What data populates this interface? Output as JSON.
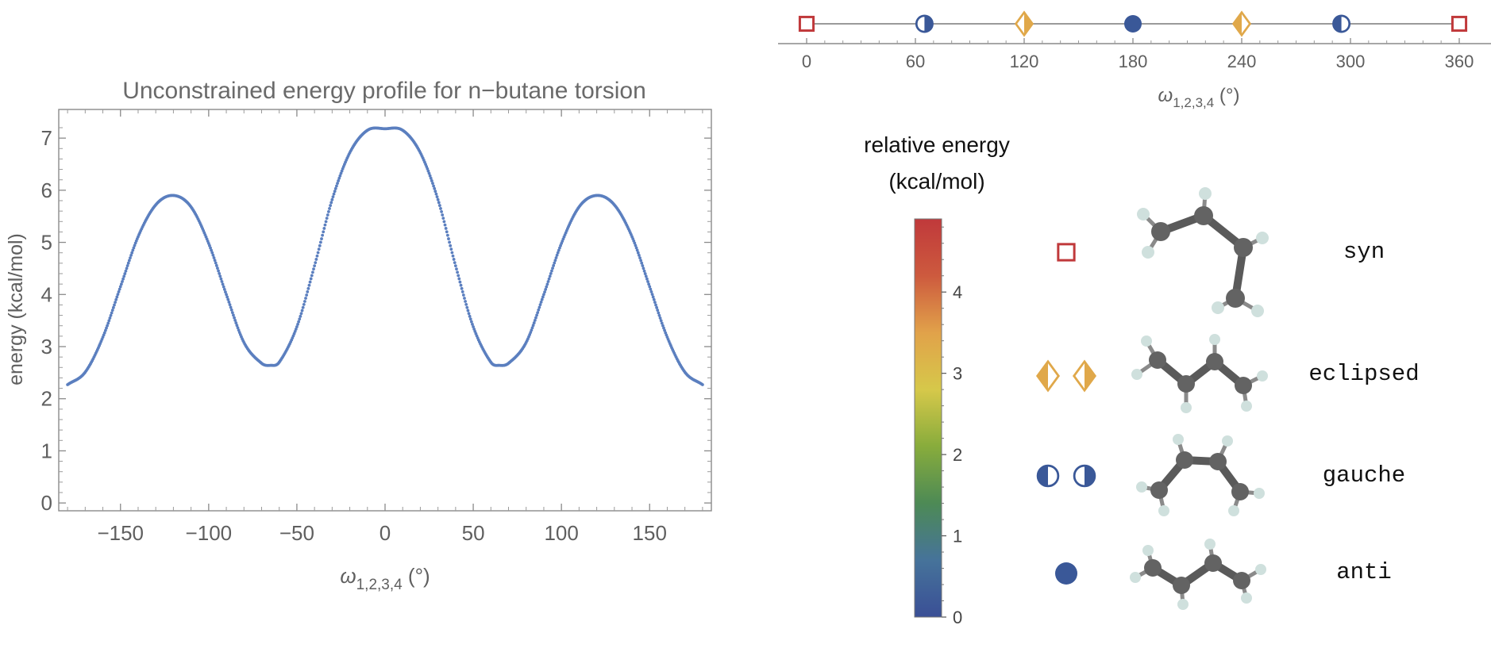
{
  "chart_data": [
    {
      "type": "scatter",
      "title": "Unconstrained energy profile for n−butane torsion",
      "xlabel": "ω",
      "xlabel_sub": "1,2,3,4",
      "xlabel_unit": " (°)",
      "ylabel": "energy (kcal/mol)",
      "xlim": [
        -185,
        185
      ],
      "ylim": [
        -0.15,
        7.55
      ],
      "xticks": [
        -150,
        -100,
        -50,
        0,
        50,
        100,
        150
      ],
      "xtick_labels": [
        "−150",
        "−100",
        "−50",
        "0",
        "50",
        "100",
        "150"
      ],
      "yticks": [
        0,
        1,
        2,
        3,
        4,
        5,
        6,
        7
      ],
      "ytick_labels": [
        "0",
        "1",
        "2",
        "3",
        "4",
        "5",
        "6",
        "7"
      ],
      "series": [
        {
          "name": "energy",
          "color": "#5b7fbf",
          "x": [
            -180,
            -170,
            -160,
            -150,
            -140,
            -130,
            -120,
            -110,
            -100,
            -90,
            -80,
            -70,
            -65,
            -60,
            -50,
            -40,
            -30,
            -20,
            -10,
            0,
            10,
            20,
            30,
            40,
            50,
            60,
            65,
            70,
            80,
            90,
            100,
            110,
            120,
            130,
            140,
            150,
            160,
            170,
            180
          ],
          "y": [
            2.27,
            2.51,
            3.18,
            4.15,
            5.11,
            5.72,
            5.9,
            5.68,
            4.98,
            4.0,
            3.08,
            2.68,
            2.64,
            2.7,
            3.38,
            4.55,
            5.82,
            6.72,
            7.15,
            7.18,
            7.15,
            6.72,
            5.82,
            4.55,
            3.38,
            2.7,
            2.64,
            2.68,
            3.08,
            4.0,
            4.98,
            5.68,
            5.9,
            5.72,
            5.11,
            4.15,
            3.18,
            2.51,
            2.27
          ]
        }
      ]
    },
    {
      "type": "scatter",
      "title": "",
      "xlabel": "ω",
      "xlabel_sub": "1,2,3,4",
      "xlabel_unit": " (°)",
      "ylabel": "",
      "xlim": [
        -15,
        375
      ],
      "xticks": [
        0,
        60,
        120,
        180,
        240,
        300,
        360
      ],
      "xtick_labels": [
        "0",
        "60",
        "120",
        "180",
        "240",
        "300",
        "360"
      ],
      "markers": [
        {
          "x": 0,
          "conformer": "syn",
          "shape": "square",
          "color": "#c0393b"
        },
        {
          "x": 65,
          "conformer": "gauche",
          "shape": "half-circle-right",
          "color": "#3a5898"
        },
        {
          "x": 120,
          "conformer": "eclipsed",
          "shape": "half-diamond-right",
          "color": "#e0a84a"
        },
        {
          "x": 180,
          "conformer": "anti",
          "shape": "circle",
          "color": "#3a5898"
        },
        {
          "x": 240,
          "conformer": "eclipsed",
          "shape": "half-diamond-left",
          "color": "#e0a84a"
        },
        {
          "x": 295,
          "conformer": "gauche",
          "shape": "half-circle-left",
          "color": "#3a5898"
        },
        {
          "x": 360,
          "conformer": "syn",
          "shape": "square",
          "color": "#c0393b"
        }
      ]
    }
  ],
  "colorbar": {
    "title_line1": "relative energy",
    "title_line2": "(kcal/mol)",
    "range": [
      0,
      4.9
    ],
    "ticks": [
      0,
      1,
      2,
      3,
      4
    ],
    "tick_labels": [
      "0",
      "1",
      "2",
      "3",
      "4"
    ],
    "colors": [
      "#3a4f96",
      "#46739a",
      "#4d8a55",
      "#88ac3c",
      "#d6c84a",
      "#e1a24a",
      "#cd5a3e",
      "#c0393b"
    ]
  },
  "legend": [
    {
      "label": "syn",
      "shapes": [
        "square"
      ],
      "color": "#c0393b"
    },
    {
      "label": "eclipsed",
      "shapes": [
        "half-diamond-left",
        "half-diamond-right"
      ],
      "color": "#e0a84a"
    },
    {
      "label": "gauche",
      "shapes": [
        "half-circle-left",
        "half-circle-right"
      ],
      "color": "#3a5898"
    },
    {
      "label": "anti",
      "shapes": [
        "circle"
      ],
      "color": "#3a5898"
    }
  ],
  "colors": {
    "axis": "#6d6d6d",
    "text": "#5f5f5f",
    "bond": "#5a5a5a",
    "carbon": "#636363",
    "hydrogen": "#cfe0dd"
  }
}
